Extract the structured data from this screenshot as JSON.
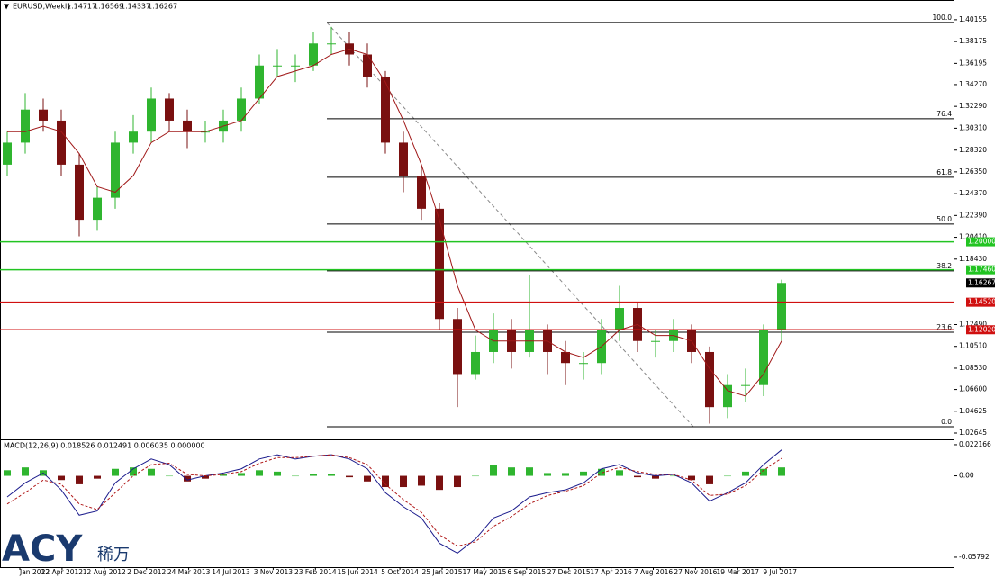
{
  "header": {
    "symbol": "EURUSD,Weekly",
    "ohlc": [
      1.14717,
      1.16569,
      1.14337,
      1.16267
    ]
  },
  "logo": {
    "brand": "ACY",
    "chinese": "稀万"
  },
  "chart_data": {
    "type": "candlestick",
    "x_labels": [
      "Jan 2012",
      "22 Apr 2012",
      "12 Aug 2012",
      "2 Dec 2012",
      "24 Mar 2013",
      "14 Jul 2013",
      "3 Nov 2013",
      "23 Feb 2014",
      "15 Jun 2014",
      "5 Oct 2014",
      "25 Jan 2015",
      "17 May 2015",
      "6 Sep 2015",
      "27 Dec 2015",
      "17 Apr 2016",
      "7 Aug 2016",
      "27 Nov 2016",
      "19 Mar 2017",
      "9 Jul 2017"
    ],
    "up_color": "#2fb52f",
    "down_color": "#7a1010",
    "open": [
      1.27,
      1.29,
      1.32,
      1.31,
      1.27,
      1.22,
      1.24,
      1.29,
      1.3,
      1.33,
      1.31,
      1.3,
      1.3,
      1.31,
      1.33,
      1.36,
      1.36,
      1.36,
      1.38,
      1.38,
      1.37,
      1.35,
      1.29,
      1.26,
      1.23,
      1.13,
      1.08,
      1.1,
      1.12,
      1.1,
      1.12,
      1.1,
      1.09,
      1.09,
      1.12,
      1.14,
      1.11,
      1.11,
      1.12,
      1.1,
      1.05,
      1.07,
      1.07,
      1.12
    ],
    "high": [
      1.3,
      1.335,
      1.33,
      1.32,
      1.28,
      1.25,
      1.3,
      1.315,
      1.34,
      1.335,
      1.32,
      1.31,
      1.32,
      1.34,
      1.37,
      1.375,
      1.37,
      1.39,
      1.395,
      1.39,
      1.38,
      1.355,
      1.3,
      1.27,
      1.235,
      1.14,
      1.115,
      1.135,
      1.13,
      1.17,
      1.125,
      1.11,
      1.1,
      1.13,
      1.16,
      1.145,
      1.12,
      1.13,
      1.125,
      1.105,
      1.08,
      1.085,
      1.125,
      1.16569
    ],
    "low": [
      1.26,
      1.28,
      1.3,
      1.26,
      1.205,
      1.21,
      1.23,
      1.28,
      1.29,
      1.3,
      1.285,
      1.29,
      1.29,
      1.3,
      1.325,
      1.35,
      1.345,
      1.355,
      1.37,
      1.36,
      1.34,
      1.28,
      1.245,
      1.22,
      1.12,
      1.05,
      1.075,
      1.09,
      1.085,
      1.095,
      1.08,
      1.07,
      1.075,
      1.08,
      1.11,
      1.1,
      1.095,
      1.1,
      1.09,
      1.035,
      1.04,
      1.055,
      1.06,
      1.11
    ],
    "close": [
      1.29,
      1.32,
      1.31,
      1.27,
      1.22,
      1.24,
      1.29,
      1.3,
      1.33,
      1.31,
      1.3,
      1.3,
      1.31,
      1.33,
      1.36,
      1.36,
      1.36,
      1.38,
      1.38,
      1.37,
      1.35,
      1.29,
      1.26,
      1.23,
      1.13,
      1.08,
      1.1,
      1.12,
      1.1,
      1.12,
      1.1,
      1.09,
      1.09,
      1.12,
      1.14,
      1.11,
      1.11,
      1.12,
      1.1,
      1.05,
      1.07,
      1.07,
      1.12,
      1.16267
    ],
    "ma": {
      "color": "#a01818",
      "values": [
        1.3,
        1.3,
        1.305,
        1.3,
        1.28,
        1.25,
        1.245,
        1.26,
        1.29,
        1.3,
        1.3,
        1.3,
        1.305,
        1.31,
        1.33,
        1.35,
        1.355,
        1.36,
        1.37,
        1.375,
        1.37,
        1.345,
        1.31,
        1.27,
        1.22,
        1.16,
        1.12,
        1.11,
        1.11,
        1.11,
        1.11,
        1.1,
        1.095,
        1.105,
        1.12,
        1.125,
        1.115,
        1.115,
        1.11,
        1.085,
        1.065,
        1.06,
        1.08,
        1.11
      ]
    },
    "ylim": [
      1.024,
      1.408
    ],
    "yticks": [
      1.40155,
      1.38175,
      1.36195,
      {
        "value": 1.3427,
        "label": "1.34270"
      },
      {
        "value": 1.3229,
        "label": "1.32290"
      },
      {
        "value": 1.3031,
        "label": "1.30310"
      },
      {
        "value": 1.2832,
        "label": "1.28320"
      },
      {
        "value": 1.2635,
        "label": "1.26350"
      },
      {
        "value": 1.2437,
        "label": "1.24370"
      },
      {
        "value": 1.2239,
        "label": "1.22390"
      },
      {
        "value": 1.2041,
        "label": "1.20410"
      },
      {
        "value": 1.1843,
        "label": "1.18430"
      },
      {
        "value": 1.1249,
        "label": "1.12490"
      },
      {
        "value": 1.1051,
        "label": "1.10510"
      },
      {
        "value": 1.0853,
        "label": "1.08530"
      },
      {
        "value": 1.066,
        "label": "1.06600"
      },
      1.04625,
      1.02645
    ],
    "fib_levels": [
      {
        "label": "100.0",
        "price": 1.3991
      },
      {
        "label": "76.4",
        "price": 1.3117
      },
      {
        "label": "61.8",
        "price": 1.2586
      },
      {
        "label": "50.0",
        "price": 1.2161
      },
      {
        "label": "38.2",
        "price": 1.1736
      },
      {
        "label": "23.6",
        "price": 1.118
      },
      {
        "label": "0.0",
        "price": 1.0322
      }
    ],
    "levels": [
      {
        "price": {
          "value": 1.2,
          "label": "1.20000"
        },
        "color": "#22c422"
      },
      {
        "price": {
          "value": 1.1746,
          "label": "1.17460"
        },
        "color": "#22c422"
      },
      {
        "price": {
          "value": 1.1452,
          "label": "1.14520"
        },
        "color": "#d01010"
      },
      {
        "price": {
          "value": 1.1202,
          "label": "1.12020"
        },
        "color": "#d01010"
      }
    ],
    "current_price": 1.16267,
    "macd": {
      "title": "MACD(12,26,9) 0.018526 0.012491 0.006035 0.000000",
      "histogram": [
        0.004,
        0.006,
        0.004,
        -0.003,
        -0.006,
        -0.002,
        0.005,
        0.006,
        0.005,
        0.0,
        -0.004,
        -0.002,
        0.001,
        0.002,
        0.004,
        0.003,
        0.0,
        0.001,
        0.001,
        -0.001,
        -0.004,
        -0.008,
        -0.008,
        -0.007,
        -0.01,
        -0.008,
        0.0,
        0.008,
        0.006,
        0.006,
        0.002,
        0.002,
        0.003,
        0.005,
        0.004,
        -0.001,
        -0.002,
        0.0,
        -0.003,
        -0.006,
        0.0,
        0.003,
        0.005,
        0.006
      ],
      "main": {
        "color": "#1a1a8c",
        "values": [
          -0.015,
          -0.005,
          0.002,
          -0.01,
          -0.028,
          -0.025,
          -0.005,
          0.005,
          0.012,
          0.008,
          -0.003,
          0.0,
          0.002,
          0.005,
          0.012,
          0.015,
          0.012,
          0.014,
          0.015,
          0.012,
          0.005,
          -0.012,
          -0.022,
          -0.03,
          -0.048,
          -0.055,
          -0.045,
          -0.03,
          -0.025,
          -0.015,
          -0.012,
          -0.01,
          -0.005,
          0.005,
          0.008,
          0.002,
          0.0,
          0.001,
          -0.005,
          -0.018,
          -0.012,
          -0.005,
          0.008,
          0.0185
        ]
      },
      "signal": {
        "color": "#b01818",
        "values": [
          -0.02,
          -0.012,
          -0.003,
          -0.006,
          -0.02,
          -0.024,
          -0.012,
          0.0,
          0.008,
          0.009,
          0.001,
          0.0,
          0.001,
          0.003,
          0.009,
          0.013,
          0.013,
          0.014,
          0.015,
          0.013,
          0.008,
          -0.006,
          -0.017,
          -0.026,
          -0.042,
          -0.05,
          -0.047,
          -0.036,
          -0.029,
          -0.02,
          -0.014,
          -0.011,
          -0.007,
          0.002,
          0.006,
          0.003,
          0.001,
          0.001,
          -0.003,
          -0.014,
          -0.013,
          -0.007,
          0.004,
          0.0125
        ]
      },
      "ylim": [
        -0.065,
        0.0247
      ],
      "yticks": [
        0.022166,
        {
          "value": 0,
          "label": "0.00"
        },
        -0.05792
      ]
    }
  }
}
